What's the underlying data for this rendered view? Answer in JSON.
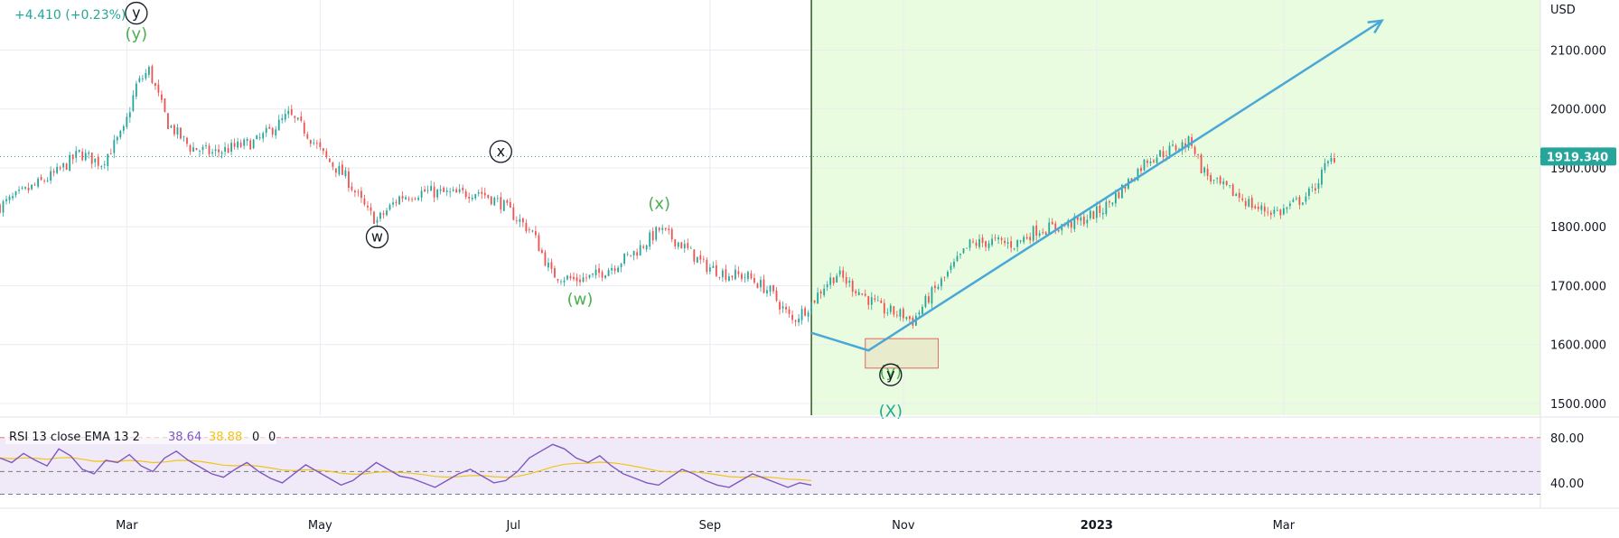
{
  "header": {
    "change_text": "+4.410 (+0.23%)"
  },
  "price_axis": {
    "currency": "USD",
    "current_price_label": "1919.340",
    "current_price": 1919.34
  },
  "rsi_header": {
    "title": "RSI 13 close EMA 13 2",
    "value1": "38.64",
    "value2": "38.88",
    "value3": "0",
    "value4": "0"
  },
  "colors": {
    "accent": "#26a69a",
    "up_candle": "#26a69a",
    "down_candle": "#ef5350",
    "highlight_zone": "#eafcdf",
    "arrow": "#4aa8d8",
    "rsi_line": "#7e57c2",
    "rsi_ema": "#f0c419",
    "rsi_band": "#f0eaf8",
    "wave_green": "#4caf50",
    "wave_black": "#131722"
  },
  "chart_data": {
    "type": "candlestick",
    "title": "",
    "ylabel": "",
    "xlabel": "",
    "ylim": [
      1480,
      2185
    ],
    "xlim": [
      "2022-01-20",
      "2023-05-21"
    ],
    "price_ticks": [
      {
        "value": 2100,
        "label": "2100.000"
      },
      {
        "value": 2000,
        "label": "2000.000"
      },
      {
        "value": 1900,
        "label": "1900.000"
      },
      {
        "value": 1800,
        "label": "1800.000"
      },
      {
        "value": 1700,
        "label": "1700.000"
      },
      {
        "value": 1600,
        "label": "1600.000"
      },
      {
        "value": 1500,
        "label": "1500.000"
      }
    ],
    "time_ticks": [
      {
        "date": "2022-03-01",
        "label": "Mar",
        "bold": false
      },
      {
        "date": "2022-05-01",
        "label": "May",
        "bold": false
      },
      {
        "date": "2022-07-01",
        "label": "Jul",
        "bold": false
      },
      {
        "date": "2022-09-01",
        "label": "Sep",
        "bold": false
      },
      {
        "date": "2022-11-01",
        "label": "Nov",
        "bold": false
      },
      {
        "date": "2023-01-01",
        "label": "2023",
        "bold": true
      },
      {
        "date": "2023-03-01",
        "label": "Mar",
        "bold": false
      }
    ],
    "price_path": [
      [
        "2022-01-20",
        1835
      ],
      [
        "2022-01-28",
        1860
      ],
      [
        "2022-02-07",
        1892
      ],
      [
        "2022-02-14",
        1925
      ],
      [
        "2022-02-21",
        1908
      ],
      [
        "2022-02-28",
        1962
      ],
      [
        "2022-03-04",
        2040
      ],
      [
        "2022-03-08",
        2066
      ],
      [
        "2022-03-14",
        1975
      ],
      [
        "2022-03-21",
        1935
      ],
      [
        "2022-03-28",
        1925
      ],
      [
        "2022-04-04",
        1935
      ],
      [
        "2022-04-11",
        1945
      ],
      [
        "2022-04-18",
        1975
      ],
      [
        "2022-04-21",
        1990
      ],
      [
        "2022-04-26",
        1965
      ],
      [
        "2022-05-03",
        1915
      ],
      [
        "2022-05-09",
        1885
      ],
      [
        "2022-05-16",
        1825
      ],
      [
        "2022-05-19",
        1810
      ],
      [
        "2022-05-26",
        1850
      ],
      [
        "2022-06-03",
        1860
      ],
      [
        "2022-06-13",
        1855
      ],
      [
        "2022-06-20",
        1860
      ],
      [
        "2022-06-27",
        1840
      ],
      [
        "2022-07-01",
        1820
      ],
      [
        "2022-07-07",
        1790
      ],
      [
        "2022-07-13",
        1720
      ],
      [
        "2022-07-20",
        1710
      ],
      [
        "2022-07-26",
        1715
      ],
      [
        "2022-08-02",
        1735
      ],
      [
        "2022-08-09",
        1760
      ],
      [
        "2022-08-16",
        1795
      ],
      [
        "2022-08-23",
        1770
      ],
      [
        "2022-08-30",
        1735
      ],
      [
        "2022-09-06",
        1720
      ],
      [
        "2022-09-13",
        1715
      ],
      [
        "2022-09-20",
        1690
      ],
      [
        "2022-09-27",
        1640
      ],
      [
        "2022-10-03",
        1670
      ],
      [
        "2022-10-07",
        1700
      ],
      [
        "2022-10-11",
        1720
      ],
      [
        "2022-10-18",
        1690
      ],
      [
        "2022-10-25",
        1660
      ],
      [
        "2022-11-01",
        1650
      ],
      [
        "2022-11-04",
        1640
      ],
      [
        "2022-11-09",
        1680
      ],
      [
        "2022-11-15",
        1720
      ],
      [
        "2022-11-22",
        1770
      ],
      [
        "2022-11-29",
        1775
      ],
      [
        "2022-12-06",
        1770
      ],
      [
        "2022-12-13",
        1795
      ],
      [
        "2022-12-20",
        1800
      ],
      [
        "2022-12-27",
        1810
      ],
      [
        "2023-01-03",
        1830
      ],
      [
        "2023-01-10",
        1870
      ],
      [
        "2023-01-17",
        1915
      ],
      [
        "2023-01-24",
        1930
      ],
      [
        "2023-01-31",
        1945
      ],
      [
        "2023-02-03",
        1900
      ],
      [
        "2023-02-07",
        1875
      ],
      [
        "2023-02-14",
        1855
      ],
      [
        "2023-02-21",
        1830
      ],
      [
        "2023-02-28",
        1825
      ],
      [
        "2023-03-06",
        1845
      ],
      [
        "2023-03-10",
        1860
      ],
      [
        "2023-03-14",
        1900
      ],
      [
        "2023-03-17",
        1919
      ]
    ],
    "current_price_line": 1919.34,
    "forecast_zone": {
      "start": "2022-10-03",
      "end": "2023-05-21"
    },
    "vertical_marker": "2022-10-03",
    "projection_arrow": [
      [
        "2022-10-03",
        1620
      ],
      [
        "2022-10-21",
        1590
      ],
      [
        "2023-04-01",
        2150
      ]
    ],
    "target_box": {
      "x1": "2022-10-20",
      "x2": "2022-11-12",
      "y1": 1560,
      "y2": 1610
    },
    "wave_labels": [
      {
        "text": "y",
        "date": "2022-03-04",
        "price": 2155,
        "style": "circle"
      },
      {
        "text": "(y)",
        "date": "2022-03-04",
        "price": 2118,
        "style": "green"
      },
      {
        "text": "x",
        "date": "2022-06-27",
        "price": 1920,
        "style": "circle"
      },
      {
        "text": "w",
        "date": "2022-05-19",
        "price": 1775,
        "style": "circle"
      },
      {
        "text": "(x)",
        "date": "2022-08-16",
        "price": 1830,
        "style": "green"
      },
      {
        "text": "(w)",
        "date": "2022-07-22",
        "price": 1668,
        "style": "green"
      },
      {
        "text": "(y)",
        "date": "2022-10-28",
        "price": 1545,
        "style": "green"
      },
      {
        "text": "y",
        "date": "2022-10-28",
        "price": 1541,
        "style": "circle"
      },
      {
        "text": "(X)",
        "date": "2022-10-28",
        "price": 1478,
        "style": "teal"
      }
    ],
    "rsi": {
      "ylim": [
        20,
        95
      ],
      "upper": 80,
      "lower": 30,
      "mid": 50,
      "ticks": [
        {
          "value": 80,
          "label": "80.00"
        },
        {
          "value": 40,
          "label": "40.00"
        }
      ],
      "end_date": "2022-10-03",
      "values": [
        62,
        58,
        66,
        60,
        55,
        70,
        64,
        52,
        48,
        60,
        58,
        65,
        55,
        50,
        62,
        68,
        60,
        54,
        48,
        45,
        52,
        58,
        50,
        44,
        40,
        48,
        56,
        50,
        44,
        38,
        42,
        50,
        58,
        52,
        46,
        44,
        40,
        36,
        42,
        48,
        52,
        46,
        40,
        42,
        50,
        62,
        68,
        74,
        70,
        62,
        58,
        64,
        55,
        48,
        44,
        40,
        38,
        45,
        52,
        48,
        42,
        38,
        36,
        42,
        48,
        44,
        40,
        36,
        40,
        38
      ]
    }
  }
}
